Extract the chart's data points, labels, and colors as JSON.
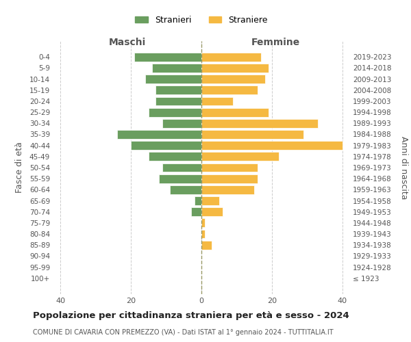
{
  "age_groups": [
    "100+",
    "95-99",
    "90-94",
    "85-89",
    "80-84",
    "75-79",
    "70-74",
    "65-69",
    "60-64",
    "55-59",
    "50-54",
    "45-49",
    "40-44",
    "35-39",
    "30-34",
    "25-29",
    "20-24",
    "15-19",
    "10-14",
    "5-9",
    "0-4"
  ],
  "birth_years": [
    "≤ 1923",
    "1924-1928",
    "1929-1933",
    "1934-1938",
    "1939-1943",
    "1944-1948",
    "1949-1953",
    "1954-1958",
    "1959-1963",
    "1964-1968",
    "1969-1973",
    "1974-1978",
    "1979-1983",
    "1984-1988",
    "1989-1993",
    "1994-1998",
    "1999-2003",
    "2004-2008",
    "2009-2013",
    "2014-2018",
    "2019-2023"
  ],
  "maschi": [
    0,
    0,
    0,
    0,
    0,
    0,
    3,
    2,
    9,
    12,
    11,
    15,
    20,
    24,
    11,
    15,
    13,
    13,
    16,
    14,
    19
  ],
  "femmine": [
    0,
    0,
    0,
    3,
    1,
    1,
    6,
    5,
    15,
    16,
    16,
    22,
    40,
    29,
    33,
    19,
    9,
    16,
    18,
    19,
    17
  ],
  "maschi_color": "#6a9e5f",
  "femmine_color": "#f5b942",
  "background_color": "#ffffff",
  "grid_color": "#cccccc",
  "title": "Popolazione per cittadinanza straniera per età e sesso - 2024",
  "subtitle": "COMUNE DI CAVARIA CON PREMEZZO (VA) - Dati ISTAT al 1° gennaio 2024 - TUTTITALIA.IT",
  "xlabel_left": "Maschi",
  "xlabel_right": "Femmine",
  "ylabel_left": "Fasce di età",
  "ylabel_right": "Anni di nascita",
  "legend_maschi": "Stranieri",
  "legend_femmine": "Straniere",
  "xlim": 42,
  "bar_height": 0.8
}
